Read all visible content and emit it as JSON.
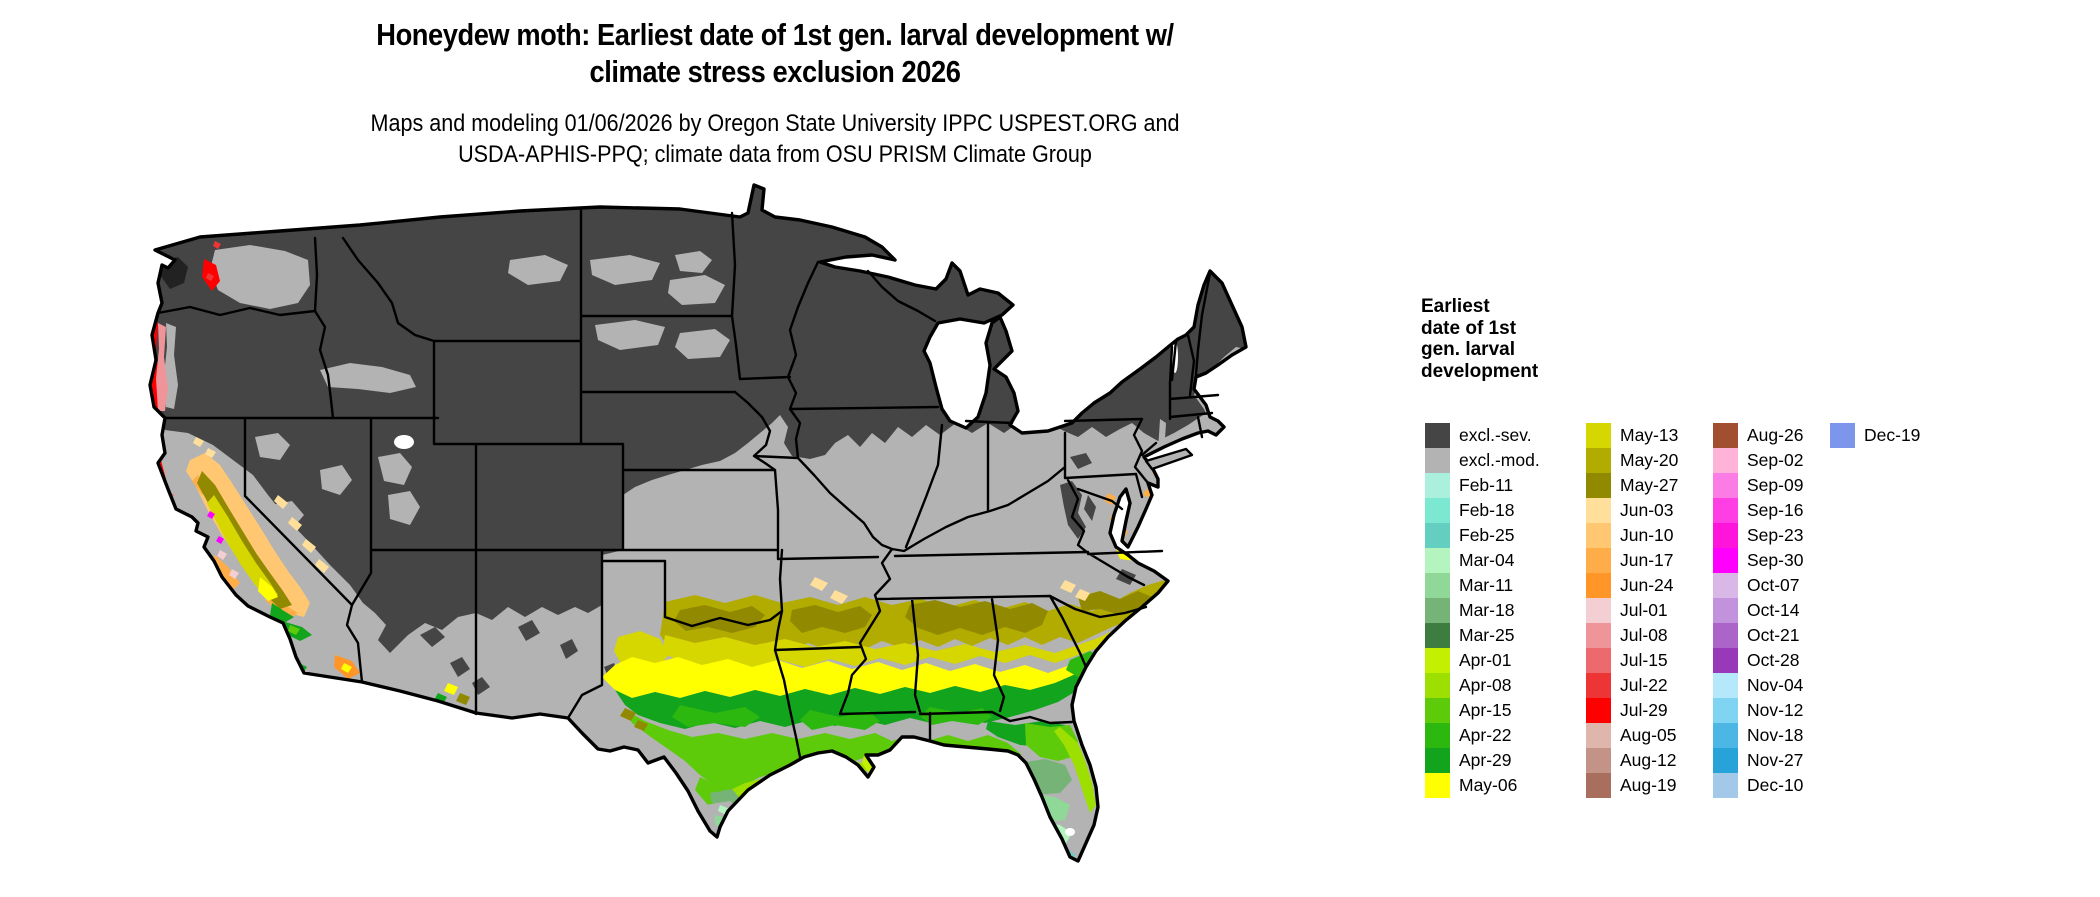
{
  "title": {
    "line1": "Honeydew moth: Earliest date of 1st gen. larval development w/",
    "line2": "climate stress exclusion 2026"
  },
  "subtitle": {
    "line1": "Maps and modeling 01/06/2026 by Oregon State University IPPC USPEST.ORG and",
    "line2": "USDA-APHIS-PPQ; climate data from OSU PRISM Climate Group"
  },
  "legend": {
    "title_lines": [
      "Earliest",
      "date of 1st",
      "gen. larval",
      "development"
    ],
    "columns": [
      [
        "excl.-sev.",
        "excl.-mod.",
        "Feb-11",
        "Feb-18",
        "Feb-25",
        "Mar-04",
        "Mar-11",
        "Mar-18",
        "Mar-25",
        "Apr-01",
        "Apr-08",
        "Apr-15",
        "Apr-22",
        "Apr-29",
        "May-06"
      ],
      [
        "May-13",
        "May-20",
        "May-27",
        "Jun-03",
        "Jun-10",
        "Jun-17",
        "Jun-24",
        "Jul-01",
        "Jul-08",
        "Jul-15",
        "Jul-22",
        "Jul-29",
        "Aug-05",
        "Aug-12",
        "Aug-19"
      ],
      [
        "Aug-26",
        "Sep-02",
        "Sep-09",
        "Sep-16",
        "Sep-23",
        "Sep-30",
        "Oct-07",
        "Oct-14",
        "Oct-21",
        "Oct-28",
        "Nov-04",
        "Nov-12",
        "Nov-18",
        "Nov-27",
        "Dec-10"
      ],
      [
        "Dec-19"
      ]
    ]
  },
  "colors": {
    "excl.-sev.": "#454545",
    "excl.-mod.": "#b3b3b3",
    "Feb-11": "#aaf0dc",
    "Feb-18": "#7de8d2",
    "Feb-25": "#64cfc0",
    "Mar-04": "#b4f4bf",
    "Mar-11": "#90d898",
    "Mar-18": "#76b376",
    "Mar-25": "#3d7d3f",
    "Apr-01": "#c3ef00",
    "Apr-08": "#9cdf00",
    "Apr-15": "#5ecb0a",
    "Apr-22": "#2db80f",
    "Apr-29": "#12a41c",
    "May-06": "#ffff00",
    "May-13": "#d6d600",
    "May-20": "#b3ac00",
    "May-27": "#918a00",
    "Jun-03": "#ffdf99",
    "Jun-10": "#ffc771",
    "Jun-17": "#ffad49",
    "Jun-24": "#ff9627",
    "Jul-01": "#f3cfd3",
    "Jul-08": "#ef9599",
    "Jul-15": "#ec6a6d",
    "Jul-22": "#ee3536",
    "Jul-29": "#fe0000",
    "Aug-05": "#deb6ab",
    "Aug-12": "#c29386",
    "Aug-19": "#a96f5e",
    "Aug-26": "#a14f2e",
    "Sep-02": "#ffb3d9",
    "Sep-09": "#fb7ce4",
    "Sep-16": "#ff3fe3",
    "Sep-23": "#ff14dc",
    "Sep-30": "#ff00ff",
    "Oct-07": "#d9b8e8",
    "Oct-14": "#c392dc",
    "Oct-21": "#ab64c8",
    "Oct-28": "#9739b9",
    "Nov-04": "#b5e8fb",
    "Nov-12": "#7fd4f2",
    "Nov-18": "#4cb6e4",
    "Nov-27": "#28a3d9",
    "Dec-10": "#a3c8e8",
    "Dec-19": "#7b96ea",
    "olympic-dark": "#222222",
    "water": "#ffffff",
    "border": "#000000"
  }
}
